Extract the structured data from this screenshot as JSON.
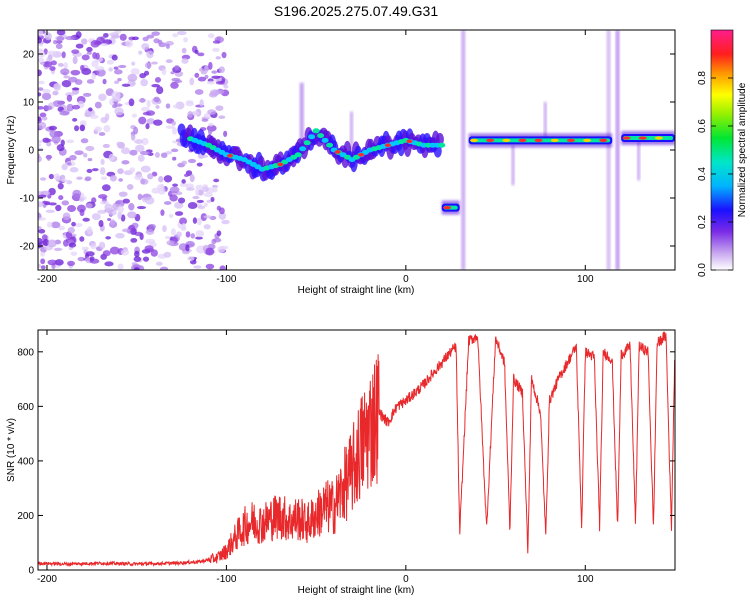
{
  "figure": {
    "title": "S196.2025.275.07.49.G31"
  },
  "chart_data": [
    {
      "type": "heatmap",
      "title": "S196.2025.275.07.49.G31",
      "xlabel": "Height of straight line (km)",
      "ylabel": "Frequency (Hz)",
      "xlim": [
        -205,
        150
      ],
      "ylim": [
        -25,
        25
      ],
      "xticks": [
        -200,
        -100,
        0,
        100
      ],
      "yticks": [
        -20,
        -10,
        0,
        10,
        20
      ],
      "xtick_labels": [
        "-200",
        "-100",
        "0",
        "100"
      ],
      "ytick_labels": [
        "-20",
        "-10",
        "0",
        "10",
        "20"
      ],
      "ridge": {
        "x": [
          -125,
          -110,
          -100,
          -90,
          -80,
          -70,
          -60,
          -50,
          -45,
          -40,
          -30,
          -20,
          -10,
          0,
          10,
          20
        ],
        "frequency": [
          3,
          1,
          -1,
          -2,
          -4,
          -3,
          -1,
          4,
          2,
          0,
          -2,
          0,
          1,
          2,
          1,
          1
        ]
      },
      "segments": [
        {
          "x_start": 20,
          "x_end": 30,
          "frequency": -12
        },
        {
          "x_start": 35,
          "x_end": 115,
          "frequency": 2
        },
        {
          "x_start": 120,
          "x_end": 150,
          "frequency": 2.5
        }
      ],
      "colorbar": {
        "label": "Normalized spectral amplitude",
        "range": [
          0,
          1
        ],
        "ticks": [
          0.0,
          0.2,
          0.4,
          0.6,
          0.8
        ],
        "tick_labels": [
          "0.0",
          "0.2",
          "0.4",
          "0.6",
          "0.8"
        ]
      }
    },
    {
      "type": "line",
      "xlabel": "Height of straight line (km)",
      "ylabel": "SNR (10 * v/v)",
      "xlim": [
        -205,
        150
      ],
      "ylim": [
        0,
        880
      ],
      "xticks": [
        -200,
        -100,
        0,
        100
      ],
      "yticks": [
        0,
        200,
        400,
        600,
        800
      ],
      "xtick_labels": [
        "-200",
        "-100",
        "0",
        "100"
      ],
      "ytick_labels": [
        "0",
        "200",
        "400",
        "600",
        "800"
      ],
      "color": "#e8282a",
      "series": [
        {
          "name": "SNR",
          "x": [
            -205,
            -190,
            -170,
            -150,
            -130,
            -115,
            -105,
            -100,
            -95,
            -90,
            -85,
            -80,
            -75,
            -70,
            -65,
            -60,
            -55,
            -50,
            -45,
            -40,
            -35,
            -30,
            -25,
            -20,
            -15,
            -10,
            -5,
            0,
            5,
            10,
            15,
            20,
            25,
            28,
            30,
            35,
            38,
            40,
            45,
            50,
            55,
            58,
            60,
            65,
            68,
            70,
            75,
            78,
            80,
            85,
            90,
            95,
            98,
            100,
            105,
            108,
            110,
            115,
            118,
            120,
            125,
            128,
            130,
            135,
            138,
            140,
            145,
            148,
            150
          ],
          "y": [
            25,
            22,
            25,
            22,
            25,
            30,
            45,
            70,
            120,
            160,
            180,
            170,
            190,
            200,
            180,
            190,
            170,
            200,
            230,
            230,
            300,
            360,
            450,
            520,
            580,
            540,
            600,
            620,
            650,
            680,
            720,
            760,
            800,
            820,
            130,
            840,
            850,
            860,
            150,
            850,
            760,
            140,
            700,
            650,
            60,
            700,
            580,
            120,
            620,
            700,
            760,
            820,
            150,
            800,
            780,
            160,
            800,
            770,
            150,
            790,
            820,
            160,
            820,
            800,
            150,
            830,
            860,
            150,
            840
          ]
        }
      ]
    }
  ]
}
